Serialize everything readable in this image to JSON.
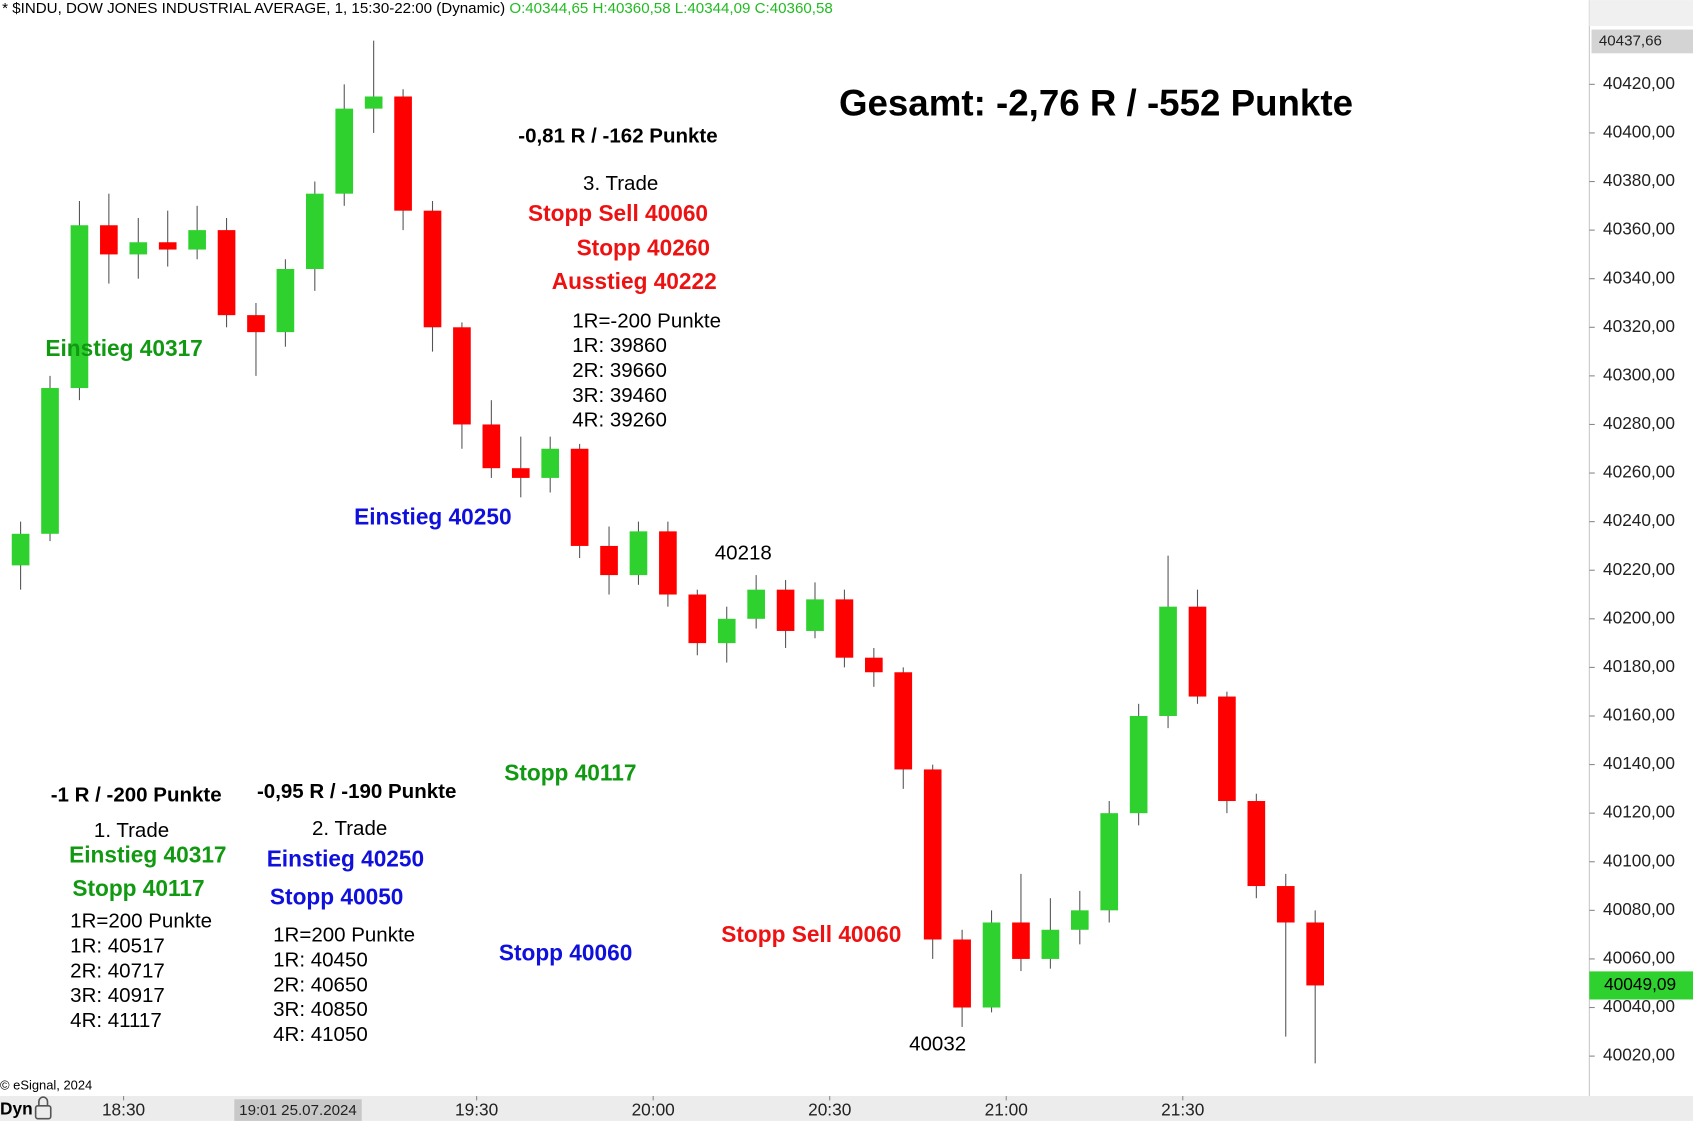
{
  "chart_data": {
    "type": "candlestick",
    "title": "* $INDU, DOW JONES INDUSTRIAL AVERAGE, 1, 15:30-22:00 (Dynamic)",
    "ohlc_label": "O:40344,65 H:40360,58 L:40344,09 C:40360,58",
    "x": [
      "18:10",
      "18:15",
      "18:20",
      "18:25",
      "18:30",
      "18:35",
      "18:40",
      "18:45",
      "18:50",
      "18:55",
      "19:00",
      "19:05",
      "19:10",
      "19:15",
      "19:20",
      "19:25",
      "19:30",
      "19:35",
      "19:40",
      "19:45",
      "19:50",
      "19:55",
      "20:00",
      "20:05",
      "20:10",
      "20:15",
      "20:20",
      "20:25",
      "20:30",
      "20:35",
      "20:40",
      "20:45",
      "20:50",
      "20:55",
      "21:00",
      "21:05",
      "21:10",
      "21:15",
      "21:20",
      "21:25",
      "21:30",
      "21:35",
      "21:40",
      "21:45",
      "21:50"
    ],
    "open": [
      40222,
      40235,
      40295,
      40362,
      40350,
      40355,
      40352,
      40360,
      40325,
      40318,
      40344,
      40375,
      40410,
      40415,
      40368,
      40320,
      40280,
      40262,
      40258,
      40270,
      40230,
      40218,
      40236,
      40210,
      40190,
      40200,
      40212,
      40195,
      40208,
      40184,
      40178,
      40138,
      40068,
      40040,
      40075,
      40060,
      40072,
      40080,
      40120,
      40160,
      40205,
      40168,
      40125,
      40090,
      40075
    ],
    "high": [
      40240,
      40300,
      40372,
      40375,
      40365,
      40368,
      40370,
      40365,
      40330,
      40348,
      40380,
      40420,
      40438,
      40418,
      40372,
      40322,
      40290,
      40275,
      40275,
      40272,
      40238,
      40240,
      40240,
      40212,
      40205,
      40218,
      40216,
      40215,
      40212,
      40188,
      40180,
      40140,
      40072,
      40080,
      40095,
      40085,
      40088,
      40125,
      40165,
      40226,
      40212,
      40170,
      40128,
      40095,
      40080
    ],
    "low": [
      40212,
      40232,
      40290,
      40338,
      40340,
      40345,
      40348,
      40320,
      40300,
      40312,
      40335,
      40370,
      40400,
      40360,
      40310,
      40270,
      40258,
      40250,
      40252,
      40225,
      40210,
      40214,
      40205,
      40185,
      40182,
      40196,
      40188,
      40192,
      40180,
      40172,
      40130,
      40060,
      40032,
      40038,
      40055,
      40056,
      40066,
      40075,
      40115,
      40155,
      40165,
      40120,
      40085,
      40028,
      40017
    ],
    "close": [
      40235,
      40295,
      40362,
      40350,
      40355,
      40352,
      40360,
      40325,
      40318,
      40344,
      40375,
      40410,
      40415,
      40368,
      40320,
      40280,
      40262,
      40258,
      40270,
      40230,
      40218,
      40236,
      40210,
      40190,
      40200,
      40212,
      40195,
      40208,
      40184,
      40178,
      40138,
      40068,
      40040,
      40075,
      40060,
      40072,
      40080,
      40120,
      40160,
      40205,
      40168,
      40125,
      40090,
      40075,
      40049.09
    ],
    "up_color": "#2ed12e",
    "down_color": "#ff0000",
    "ylim": [
      40003.56,
      40454.67
    ],
    "yticks": [
      {
        "value": 40020,
        "label": "40020,00"
      },
      {
        "value": 40040,
        "label": "40040,00"
      },
      {
        "value": 40060,
        "label": "40060,00"
      },
      {
        "value": 40080,
        "label": "40080,00"
      },
      {
        "value": 40100,
        "label": "40100,00"
      },
      {
        "value": 40120,
        "label": "40120,00"
      },
      {
        "value": 40140,
        "label": "40140,00"
      },
      {
        "value": 40160,
        "label": "40160,00"
      },
      {
        "value": 40180,
        "label": "40180,00"
      },
      {
        "value": 40200,
        "label": "40200,00"
      },
      {
        "value": 40220,
        "label": "40220,00"
      },
      {
        "value": 40240,
        "label": "40240,00"
      },
      {
        "value": 40260,
        "label": "40260,00"
      },
      {
        "value": 40280,
        "label": "40280,00"
      },
      {
        "value": 40300,
        "label": "40300,00"
      },
      {
        "value": 40320,
        "label": "40320,00"
      },
      {
        "value": 40340,
        "label": "40340,00"
      },
      {
        "value": 40360,
        "label": "40360,00"
      },
      {
        "value": 40380,
        "label": "40380,00"
      },
      {
        "value": 40400,
        "label": "40400,00"
      },
      {
        "value": 40420,
        "label": "40420,00"
      }
    ],
    "xticks": [
      "18:30",
      "19:30",
      "20:00",
      "20:30",
      "21:00",
      "21:30"
    ],
    "crosshair_time": "19:01 25.07.2024",
    "crosshair_price": {
      "value": 40437.66,
      "label": "40437,66"
    },
    "last_price": {
      "value": 40049.09,
      "label": "40049,09"
    },
    "copyright": "© eSignal, 2024",
    "mode_label": "Dyn",
    "annotations": [
      "Gesamt: -2,76 R / -552 Punkte",
      "-0,81 R / -162 Punkte",
      "3. Trade",
      "Stopp Sell 40060",
      "Stopp 40260",
      "Ausstieg 40222",
      "1R=-200 Punkte",
      "1R: 39860",
      "2R: 39660",
      "3R: 39460",
      "4R: 39260",
      "Einstieg 40317",
      "Einstieg 40250",
      "40218",
      "Stopp 40117",
      "-1 R / -200 Punkte",
      "1. Trade",
      "Einstieg 40317",
      "Stopp 40117",
      "1R=200 Punkte",
      "1R: 40517",
      "2R: 40717",
      "3R: 40917",
      "4R: 41117",
      "-0,95 R / -190 Punkte",
      "2. Trade",
      "Einstieg 40250",
      "Stopp 40050",
      "1R=200 Punkte",
      "1R: 40450",
      "2R: 40650",
      "3R: 40850",
      "4R: 41050",
      "Stopp 40060",
      "Stopp Sell 40060",
      "40032"
    ]
  }
}
